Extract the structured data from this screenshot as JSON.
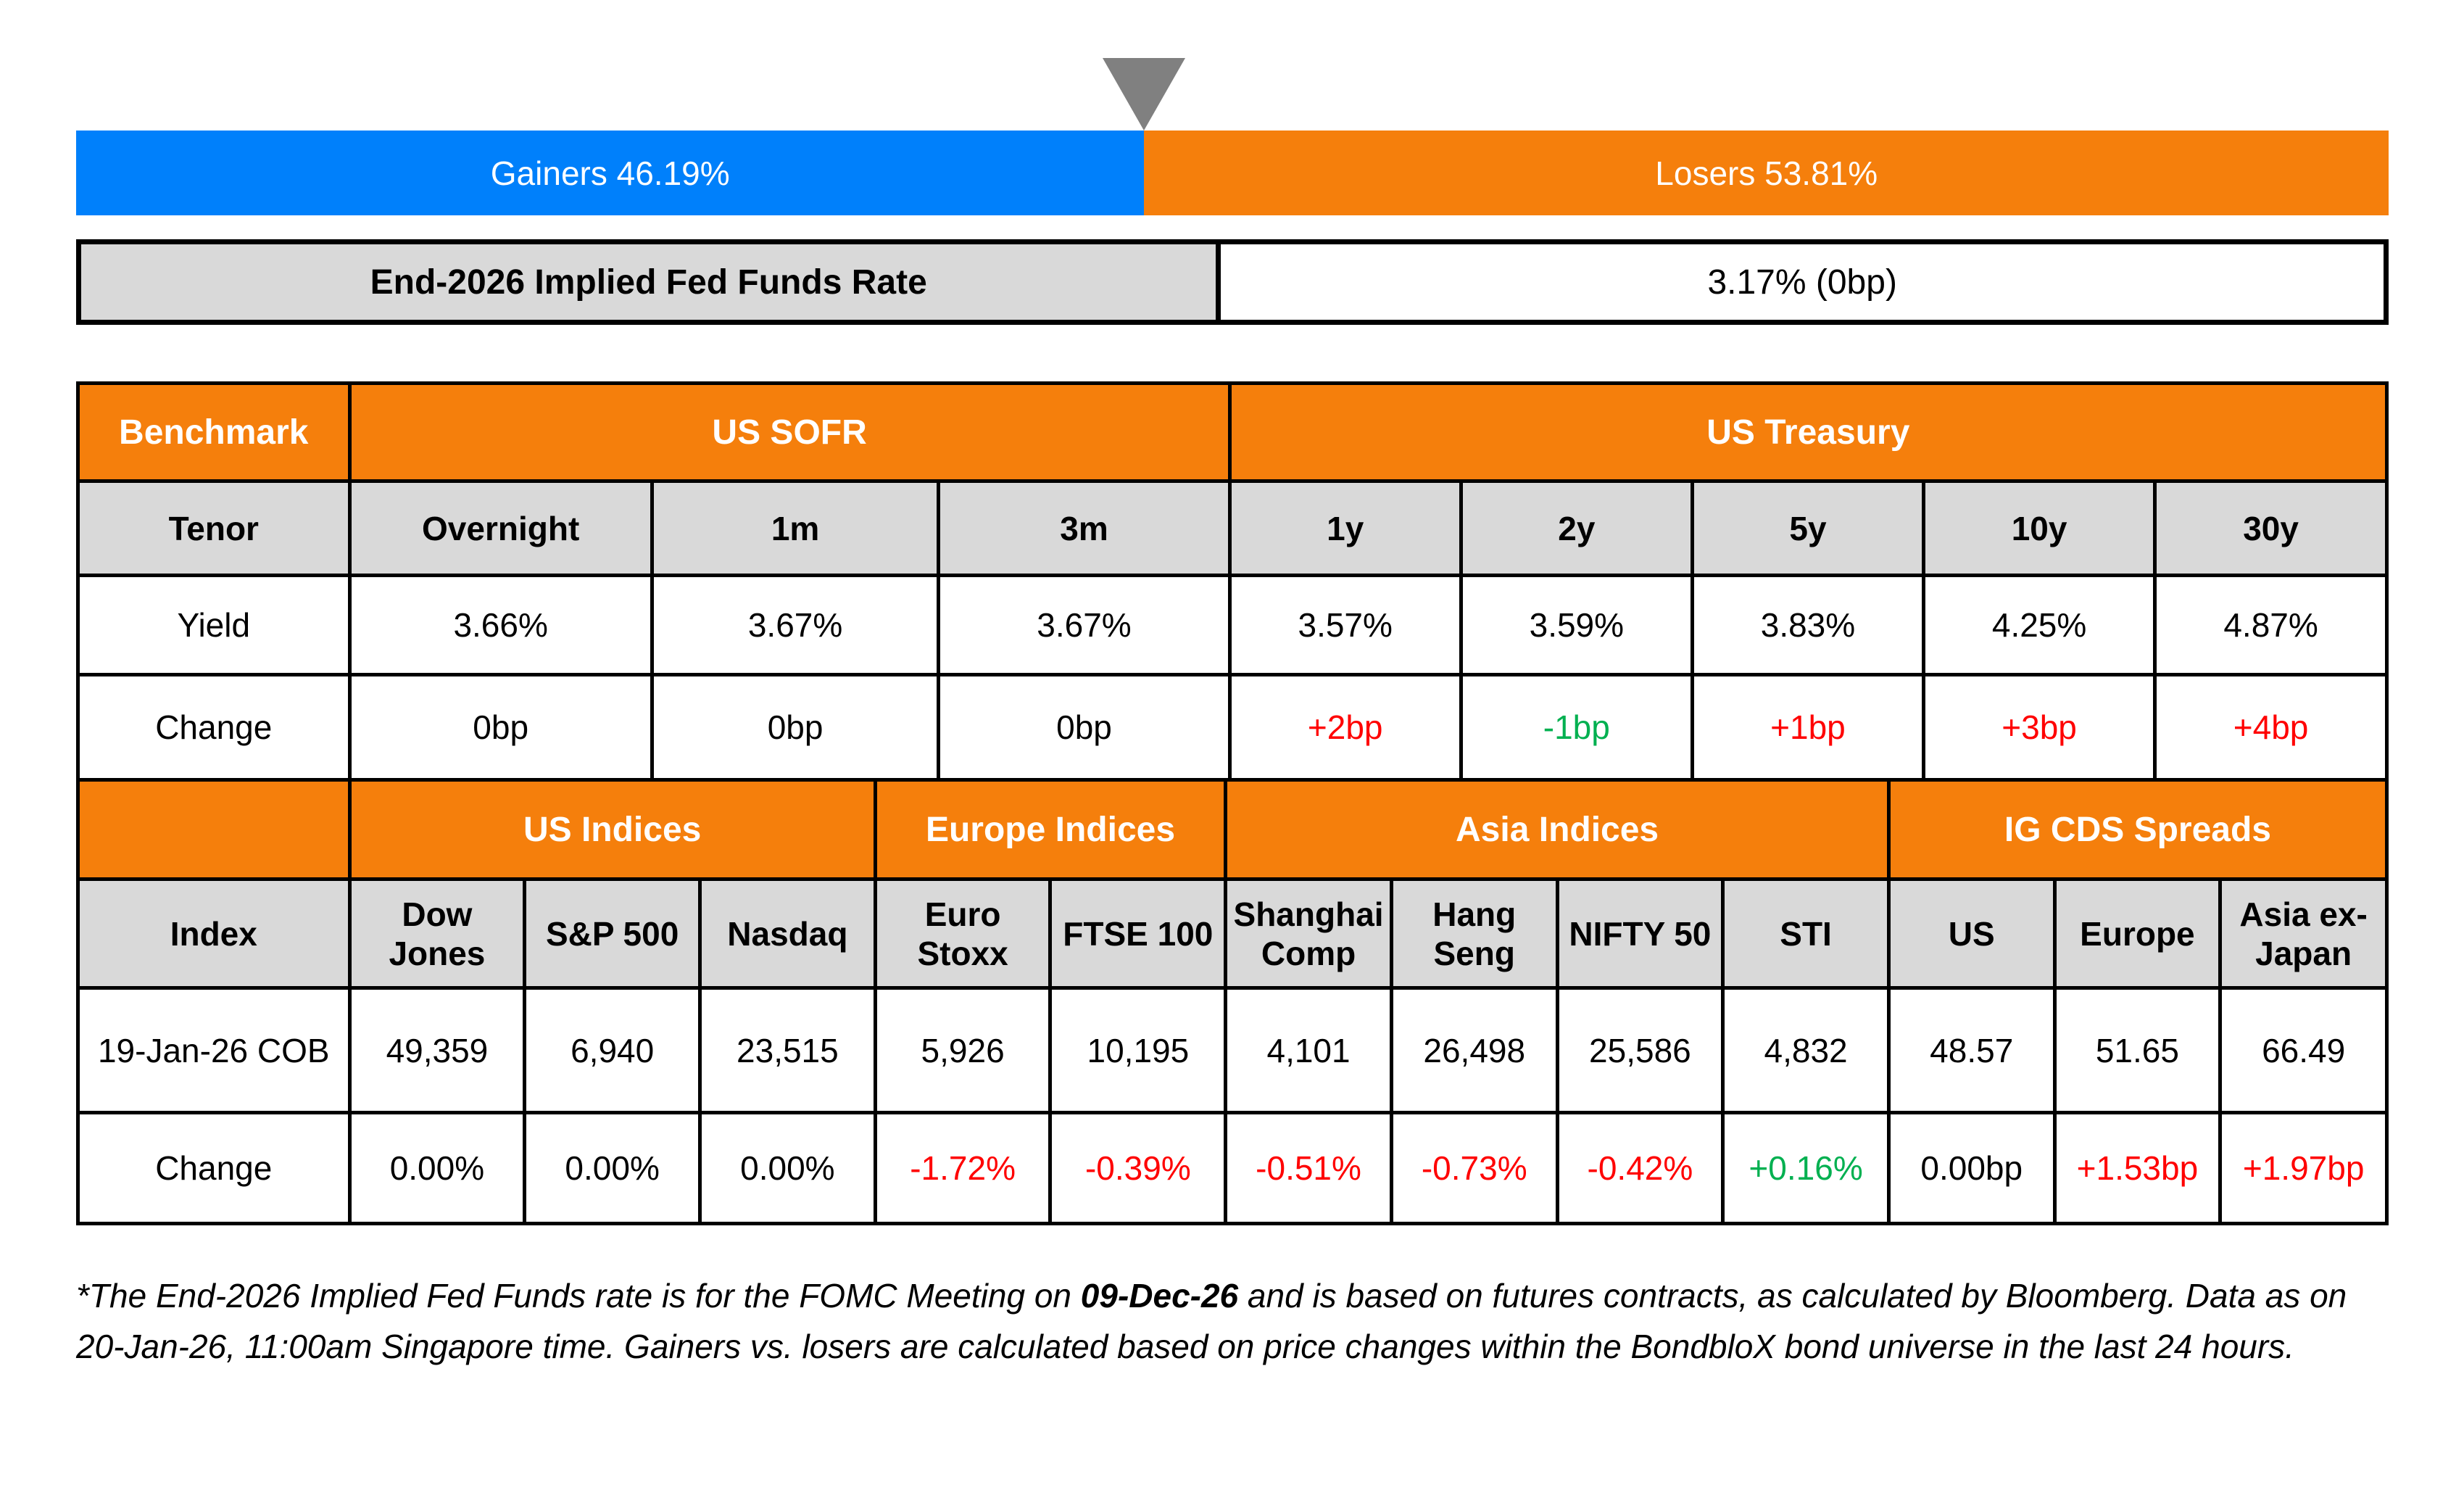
{
  "palette": {
    "gainers_blue": "#0080FB",
    "losers_orange": "#F57F0C",
    "marker_gray": "#808080",
    "header_orange": "#F57F0C",
    "subheader_gray": "#D9D9D9",
    "negative_red": "#FF0000",
    "positive_green": "#00B050",
    "neutral_black": "#000000"
  },
  "gauge": {
    "gainers_label": "Gainers 46.19%",
    "losers_label": "Losers 53.81%",
    "gainers_pct": 46.19,
    "losers_pct": 53.81
  },
  "fed_funds": {
    "label": "End-2026 Implied Fed Funds Rate",
    "value": "3.17% (0bp)"
  },
  "benchmark_table": {
    "corner_label": "Benchmark",
    "group_sofr": "US SOFR",
    "group_treasury": "US Treasury",
    "tenor_label": "Tenor",
    "tenors": [
      "Overnight",
      "1m",
      "3m",
      "1y",
      "2y",
      "5y",
      "10y",
      "30y"
    ],
    "yield_label": "Yield",
    "yields": [
      "3.66%",
      "3.67%",
      "3.67%",
      "3.57%",
      "3.59%",
      "3.83%",
      "4.25%",
      "4.87%"
    ],
    "change_label": "Change",
    "changes": [
      {
        "text": "0bp",
        "color": "#000000"
      },
      {
        "text": "0bp",
        "color": "#000000"
      },
      {
        "text": "0bp",
        "color": "#000000"
      },
      {
        "text": "+2bp",
        "color": "#FF0000"
      },
      {
        "text": "-1bp",
        "color": "#00B050"
      },
      {
        "text": "+1bp",
        "color": "#FF0000"
      },
      {
        "text": "+3bp",
        "color": "#FF0000"
      },
      {
        "text": "+4bp",
        "color": "#FF0000"
      }
    ]
  },
  "indices_table": {
    "group_us": "US Indices",
    "group_europe": "Europe Indices",
    "group_asia": "Asia Indices",
    "group_cds": "IG CDS Spreads",
    "index_label": "Index",
    "columns": [
      "Dow Jones",
      "S&P 500",
      "Nasdaq",
      "Euro Stoxx",
      "FTSE 100",
      "Shanghai Comp",
      "Hang Seng",
      "NIFTY 50",
      "STI",
      "US",
      "Europe",
      "Asia ex-Japan"
    ],
    "row_label": "19-Jan-26 COB",
    "values": [
      "49,359",
      "6,940",
      "23,515",
      "5,926",
      "10,195",
      "4,101",
      "26,498",
      "25,586",
      "4,832",
      "48.57",
      "51.65",
      "66.49"
    ],
    "change_label": "Change",
    "changes": [
      {
        "text": "0.00%",
        "color": "#000000"
      },
      {
        "text": "0.00%",
        "color": "#000000"
      },
      {
        "text": "0.00%",
        "color": "#000000"
      },
      {
        "text": "-1.72%",
        "color": "#FF0000"
      },
      {
        "text": "-0.39%",
        "color": "#FF0000"
      },
      {
        "text": "-0.51%",
        "color": "#FF0000"
      },
      {
        "text": "-0.73%",
        "color": "#FF0000"
      },
      {
        "text": "-0.42%",
        "color": "#FF0000"
      },
      {
        "text": "+0.16%",
        "color": "#00B050"
      },
      {
        "text": "0.00bp",
        "color": "#000000"
      },
      {
        "text": "+1.53bp",
        "color": "#FF0000"
      },
      {
        "text": "+1.97bp",
        "color": "#FF0000"
      }
    ]
  },
  "footnote": {
    "part1": "*The End-2026 Implied Fed Funds rate is for the FOMC Meeting on ",
    "bold_date": "09-Dec-26",
    "part2": " and is based on futures contracts, as calculated by Bloomberg. Data as on 20-Jan-26, 11:00am Singapore time. Gainers vs. losers are calculated based on price changes within the BondbloX bond universe in the last 24 hours."
  },
  "chart_data": [
    {
      "type": "bar",
      "title": "Gainers vs Losers (stacked horizontal gauge)",
      "categories": [
        "Gainers",
        "Losers"
      ],
      "values": [
        46.19,
        53.81
      ],
      "unit": "%",
      "marker_position_pct": 46.19,
      "colors": [
        "#0080FB",
        "#F57F0C"
      ]
    },
    {
      "type": "table",
      "title": "Benchmark yields",
      "column_groups": [
        {
          "label": "US SOFR",
          "span": 3
        },
        {
          "label": "US Treasury",
          "span": 5
        }
      ],
      "columns": [
        "Overnight",
        "1m",
        "3m",
        "1y",
        "2y",
        "5y",
        "10y",
        "30y"
      ],
      "rows": [
        {
          "label": "Yield",
          "cells": [
            "3.66%",
            "3.67%",
            "3.67%",
            "3.57%",
            "3.59%",
            "3.83%",
            "4.25%",
            "4.87%"
          ]
        },
        {
          "label": "Change",
          "cells": [
            "0bp",
            "0bp",
            "0bp",
            "+2bp",
            "-1bp",
            "+1bp",
            "+3bp",
            "+4bp"
          ]
        }
      ]
    },
    {
      "type": "table",
      "title": "Indices and IG CDS spreads",
      "column_groups": [
        {
          "label": "US Indices",
          "span": 3
        },
        {
          "label": "Europe Indices",
          "span": 2
        },
        {
          "label": "Asia Indices",
          "span": 4
        },
        {
          "label": "IG CDS Spreads",
          "span": 3
        }
      ],
      "columns": [
        "Dow Jones",
        "S&P 500",
        "Nasdaq",
        "Euro Stoxx",
        "FTSE 100",
        "Shanghai Comp",
        "Hang Seng",
        "NIFTY 50",
        "STI",
        "US",
        "Europe",
        "Asia ex-Japan"
      ],
      "rows": [
        {
          "label": "19-Jan-26 COB",
          "cells": [
            "49,359",
            "6,940",
            "23,515",
            "5,926",
            "10,195",
            "4,101",
            "26,498",
            "25,586",
            "4,832",
            "48.57",
            "51.65",
            "66.49"
          ]
        },
        {
          "label": "Change",
          "cells": [
            "0.00%",
            "0.00%",
            "0.00%",
            "-1.72%",
            "-0.39%",
            "-0.51%",
            "-0.73%",
            "-0.42%",
            "+0.16%",
            "0.00bp",
            "+1.53bp",
            "+1.97bp"
          ]
        }
      ]
    }
  ]
}
